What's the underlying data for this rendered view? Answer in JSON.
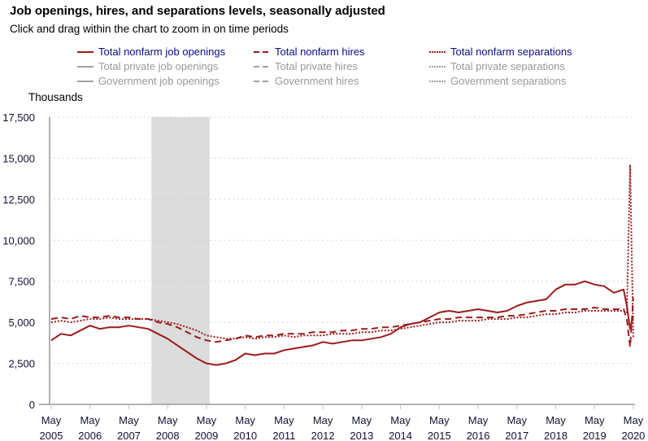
{
  "title": "Job openings, hires, and separations levels, seasonally adjusted",
  "subtitle": "Click and drag within the chart to zoom in on time periods",
  "legend": [
    {
      "label": "Total nonfarm job openings",
      "style": "solid",
      "active": true
    },
    {
      "label": "Total nonfarm hires",
      "style": "dashed",
      "active": true
    },
    {
      "label": "Total nonfarm separations",
      "style": "dotted",
      "active": true
    },
    {
      "label": "Total private job openings",
      "style": "solid",
      "active": false
    },
    {
      "label": "Total private hires",
      "style": "dashed",
      "active": false
    },
    {
      "label": "Total private separations",
      "style": "dotted",
      "active": false
    },
    {
      "label": "Government job openings",
      "style": "solid",
      "active": false
    },
    {
      "label": "Government hires",
      "style": "dashed",
      "active": false
    },
    {
      "label": "Government separations",
      "style": "dotted",
      "active": false
    }
  ],
  "colors": {
    "series": "#9b1b1b",
    "active_text": "#0a0a8c",
    "inactive_text": "#999999",
    "inactive_line": "#a0a0a0",
    "recession": "#dcdcdc"
  },
  "chart_data": {
    "type": "line",
    "ylabel": "Thousands",
    "ylim": [
      0,
      17500
    ],
    "yticks": [
      0,
      2500,
      5000,
      7500,
      10000,
      12500,
      15000,
      17500
    ],
    "ytick_labels": [
      "0",
      "2,500",
      "5,000",
      "7,500",
      "10,000",
      "12,500",
      "15,000",
      "17,500"
    ],
    "xticks": [
      [
        "May",
        "2005"
      ],
      [
        "May",
        "2006"
      ],
      [
        "May",
        "2007"
      ],
      [
        "May",
        "2008"
      ],
      [
        "May",
        "2009"
      ],
      [
        "May",
        "2010"
      ],
      [
        "May",
        "2011"
      ],
      [
        "May",
        "2012"
      ],
      [
        "May",
        "2013"
      ],
      [
        "May",
        "2014"
      ],
      [
        "May",
        "2015"
      ],
      [
        "May",
        "2016"
      ],
      [
        "May",
        "2017"
      ],
      [
        "May",
        "2018"
      ],
      [
        "May",
        "2019"
      ],
      [
        "May",
        "2020"
      ]
    ],
    "grid": "horizontal dotted",
    "recession": {
      "start": "2007-12",
      "end": "2009-06"
    },
    "x": [
      "2005-05",
      "2005-08",
      "2005-11",
      "2006-02",
      "2006-05",
      "2006-08",
      "2006-11",
      "2007-02",
      "2007-05",
      "2007-08",
      "2007-11",
      "2008-02",
      "2008-05",
      "2008-08",
      "2008-11",
      "2009-02",
      "2009-05",
      "2009-08",
      "2009-11",
      "2010-02",
      "2010-05",
      "2010-08",
      "2010-11",
      "2011-02",
      "2011-05",
      "2011-08",
      "2011-11",
      "2012-02",
      "2012-05",
      "2012-08",
      "2012-11",
      "2013-02",
      "2013-05",
      "2013-08",
      "2013-11",
      "2014-02",
      "2014-05",
      "2014-08",
      "2014-11",
      "2015-02",
      "2015-05",
      "2015-08",
      "2015-11",
      "2016-02",
      "2016-05",
      "2016-08",
      "2016-11",
      "2017-02",
      "2017-05",
      "2017-08",
      "2017-11",
      "2018-02",
      "2018-05",
      "2018-08",
      "2018-11",
      "2019-02",
      "2019-05",
      "2019-08",
      "2019-11",
      "2020-02",
      "2020-03",
      "2020-04",
      "2020-05"
    ],
    "series": [
      {
        "name": "Total nonfarm job openings",
        "style": "solid",
        "values": [
          3900,
          4300,
          4200,
          4500,
          4800,
          4600,
          4700,
          4700,
          4800,
          4700,
          4600,
          4300,
          4000,
          3600,
          3200,
          2800,
          2500,
          2400,
          2500,
          2700,
          3100,
          3000,
          3100,
          3100,
          3300,
          3400,
          3500,
          3600,
          3800,
          3700,
          3800,
          3900,
          3900,
          4000,
          4100,
          4300,
          4700,
          4900,
          5000,
          5300,
          5600,
          5700,
          5600,
          5700,
          5800,
          5700,
          5600,
          5700,
          6000,
          6200,
          6300,
          6400,
          7000,
          7300,
          7300,
          7500,
          7300,
          7200,
          6800,
          7000,
          6000,
          4600,
          5400
        ]
      },
      {
        "name": "Total nonfarm hires",
        "style": "dashed",
        "values": [
          5200,
          5300,
          5200,
          5400,
          5300,
          5300,
          5400,
          5300,
          5300,
          5200,
          5200,
          5000,
          4900,
          4700,
          4400,
          4100,
          3900,
          3800,
          3900,
          4000,
          4200,
          4100,
          4200,
          4200,
          4300,
          4300,
          4300,
          4400,
          4400,
          4400,
          4500,
          4500,
          4600,
          4600,
          4700,
          4700,
          4800,
          4900,
          5000,
          5100,
          5200,
          5200,
          5300,
          5300,
          5300,
          5300,
          5300,
          5400,
          5400,
          5500,
          5600,
          5700,
          5700,
          5800,
          5800,
          5800,
          5900,
          5800,
          5800,
          5800,
          5200,
          3500,
          6500
        ]
      },
      {
        "name": "Total nonfarm separations",
        "style": "dotted",
        "values": [
          5000,
          5100,
          5000,
          5100,
          5200,
          5200,
          5300,
          5200,
          5200,
          5200,
          5200,
          5100,
          5000,
          4900,
          4700,
          4500,
          4200,
          4100,
          4000,
          4000,
          4100,
          4000,
          4100,
          4100,
          4200,
          4100,
          4200,
          4200,
          4200,
          4300,
          4300,
          4300,
          4400,
          4400,
          4500,
          4500,
          4600,
          4700,
          4800,
          4900,
          5000,
          5000,
          5100,
          5100,
          5100,
          5200,
          5200,
          5200,
          5300,
          5300,
          5400,
          5500,
          5500,
          5600,
          5600,
          5700,
          5700,
          5700,
          5700,
          5700,
          5600,
          14600,
          4100
        ]
      }
    ]
  }
}
